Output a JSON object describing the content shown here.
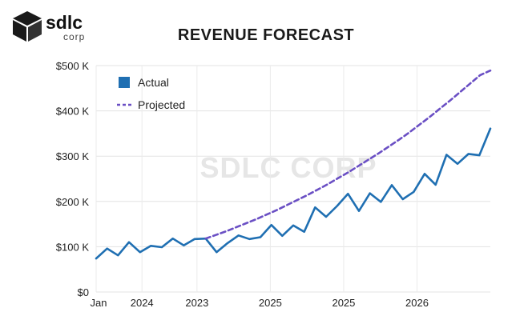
{
  "logo": {
    "brand": "sdlc",
    "sub": "corp"
  },
  "chart_data": {
    "type": "line",
    "title": "REVENUE FORECAST",
    "watermark": "SDLC CORP",
    "xlabel": "",
    "ylabel": "",
    "y_ticks": [
      0,
      100,
      200,
      300,
      400,
      500
    ],
    "y_tick_labels": [
      "$0",
      "$100 K",
      "$200 K",
      "$300 K",
      "$400 K",
      "$500 K"
    ],
    "ylim": [
      0,
      500
    ],
    "x_tick_labels": [
      {
        "label": "Jan",
        "index": 0
      },
      {
        "label": "2024",
        "index": 5
      },
      {
        "label": "2023",
        "index": 11
      },
      {
        "label": "2025",
        "index": 19
      },
      {
        "label": "2025",
        "index": 27
      },
      {
        "label": "2026",
        "index": 35
      }
    ],
    "n_points": 44,
    "legend_position": "top-left",
    "series": [
      {
        "name": "Actual",
        "style": "solid",
        "color": "#1f6fb2",
        "values": [
          74,
          96,
          81,
          110,
          88,
          102,
          99,
          118,
          103,
          117,
          118,
          88,
          108,
          125,
          117,
          121,
          148,
          124,
          147,
          133,
          187,
          166,
          190,
          217,
          179,
          218,
          199,
          236,
          205,
          221,
          261,
          237,
          303,
          283,
          305,
          302,
          361
        ]
      },
      {
        "name": "Projected",
        "style": "dashed",
        "color": "#6a4fc4",
        "start_index": 10,
        "values": [
          118,
          126,
          134,
          143,
          152,
          161,
          171,
          181,
          192,
          203,
          214,
          226,
          238,
          251,
          264,
          278,
          292,
          306,
          321,
          336,
          352,
          369,
          386,
          404,
          422,
          441,
          460,
          479,
          489
        ]
      }
    ]
  }
}
